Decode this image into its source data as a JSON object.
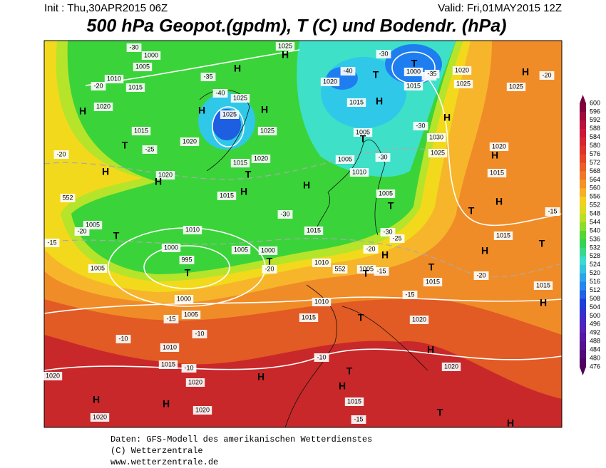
{
  "header": {
    "init": "Init : Thu,30APR2015 06Z",
    "valid": "Valid: Fri,01MAY2015 12Z",
    "title": "500 hPa Geopot.(gpdm), T (C) und Bodendr. (hPa)"
  },
  "footer": [
    "Daten: GFS-Modell des amerikanischen Wetterdienstes",
    "(C) Wetterzentrale",
    "www.wetterzentrale.de"
  ],
  "colorbar": {
    "levels": [
      "600",
      "596",
      "592",
      "588",
      "584",
      "580",
      "576",
      "572",
      "568",
      "564",
      "560",
      "556",
      "552",
      "548",
      "544",
      "540",
      "536",
      "532",
      "528",
      "524",
      "520",
      "516",
      "512",
      "508",
      "504",
      "500",
      "496",
      "492",
      "488",
      "484",
      "480",
      "476"
    ]
  },
  "map": {
    "labels": [
      "H",
      "1025",
      "1000",
      "1005",
      "-30",
      "1010",
      "1015",
      "-20",
      "1020",
      "H",
      "H",
      "-35",
      "-40",
      "1025",
      "H",
      "H",
      "1025",
      "1025",
      "T",
      "1015",
      "-25",
      "1020",
      "-20",
      "H",
      "1020",
      "H",
      "1015",
      "T",
      "1020",
      "1015",
      "H",
      "552",
      "-30",
      "H",
      "1005",
      "-20",
      "T",
      "1010",
      "-15",
      "1000",
      "1005",
      "1000",
      "T",
      "-20",
      "995",
      "T",
      "1005",
      "1000",
      "1005",
      "-15",
      "-10",
      "-10",
      "1010",
      "1015",
      "-10",
      "1020",
      "H",
      "T",
      "H",
      "1020",
      "H",
      "H",
      "1020",
      "1020",
      "1015",
      "-15",
      "T",
      "H",
      "1020",
      "H",
      "1020",
      "T",
      "1015",
      "1010",
      "-10",
      "1010",
      "552",
      "1005",
      "H",
      "T",
      "-20",
      "-15",
      "-15",
      "1015",
      "T",
      "-20",
      "H",
      "T",
      "H",
      "1015",
      "T",
      "1015",
      "H",
      "-15",
      "1015",
      "H",
      "1020",
      "-20",
      "H",
      "1025",
      "1025",
      "1020",
      "-25",
      "1015",
      "1030",
      "1025",
      "H",
      "-30",
      "T",
      "1000",
      "-35",
      "-30",
      "T",
      "1020",
      "-40",
      "H",
      "1015",
      "1005",
      "T",
      "-30",
      "1005",
      "1010",
      "T",
      "1005",
      "-30",
      "-25",
      "1015"
    ]
  }
}
